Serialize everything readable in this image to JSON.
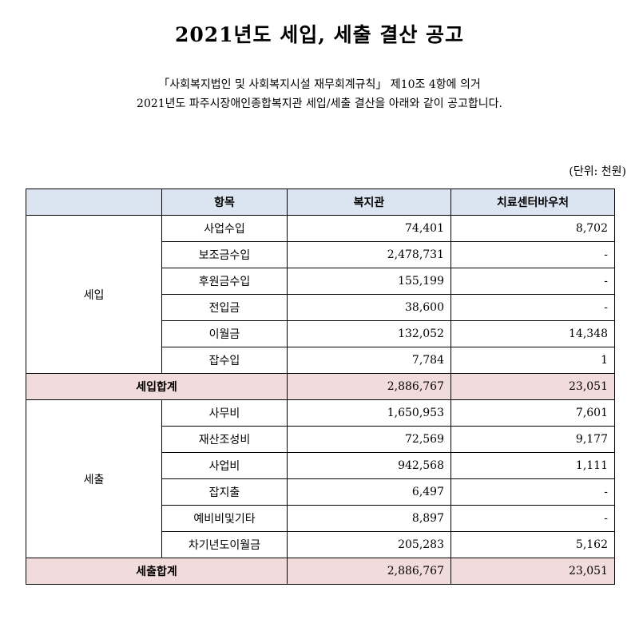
{
  "title": "2021년도 세입, 세출 결산 공고",
  "intro": {
    "line1": "「사회복지법인 및 사회복지시설 재무회계규칙」 제10조 4항에 의거",
    "line2": "2021년도 파주시장애인종합복지관 세입/세출 결산을 아래와 같이 공고합니다."
  },
  "unit": "(단위: 천원)",
  "table": {
    "headers": [
      "",
      "항목",
      "복지관",
      "치료센터바우처"
    ],
    "revenue": {
      "group": "세입",
      "rows": [
        {
          "item": "사업수입",
          "welfare": "74,401",
          "voucher": "8,702"
        },
        {
          "item": "보조금수입",
          "welfare": "2,478,731",
          "voucher": "-"
        },
        {
          "item": "후원금수입",
          "welfare": "155,199",
          "voucher": "-"
        },
        {
          "item": "전입금",
          "welfare": "38,600",
          "voucher": "-"
        },
        {
          "item": "이월금",
          "welfare": "132,052",
          "voucher": "14,348"
        },
        {
          "item": "잡수입",
          "welfare": "7,784",
          "voucher": "1"
        }
      ],
      "total": {
        "label": "세입합계",
        "welfare": "2,886,767",
        "voucher": "23,051"
      }
    },
    "expenditure": {
      "group": "세출",
      "rows": [
        {
          "item": "사무비",
          "welfare": "1,650,953",
          "voucher": "7,601"
        },
        {
          "item": "재산조성비",
          "welfare": "72,569",
          "voucher": "9,177"
        },
        {
          "item": "사업비",
          "welfare": "942,568",
          "voucher": "1,111"
        },
        {
          "item": "잡지출",
          "welfare": "6,497",
          "voucher": "-"
        },
        {
          "item": "예비비및기타",
          "welfare": "8,897",
          "voucher": "-"
        },
        {
          "item": "차기년도이월금",
          "welfare": "205,283",
          "voucher": "5,162"
        }
      ],
      "total": {
        "label": "세출합계",
        "welfare": "2,886,767",
        "voucher": "23,051"
      }
    }
  }
}
